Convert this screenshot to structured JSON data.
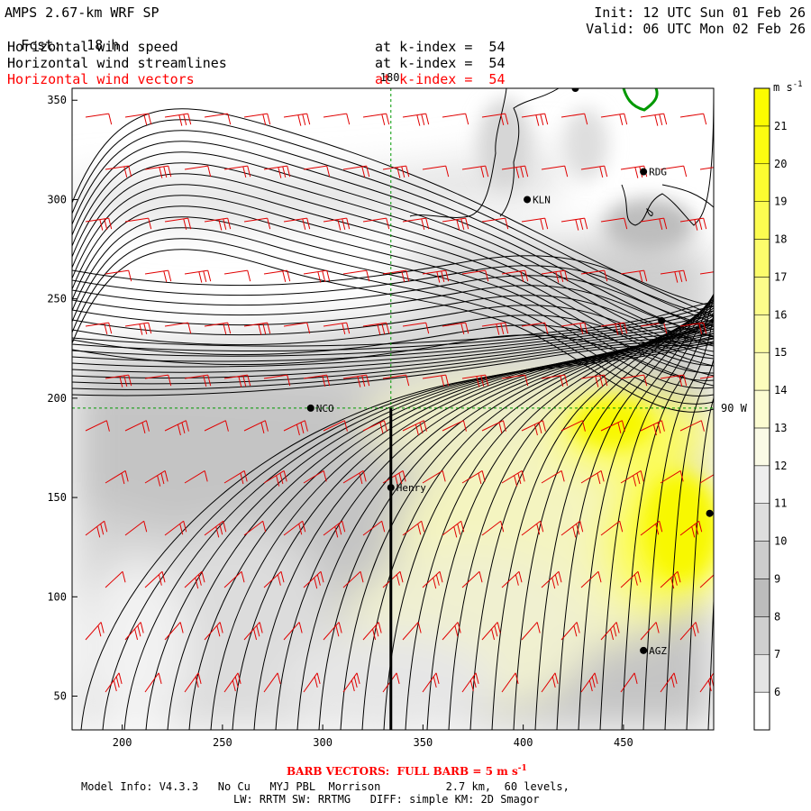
{
  "header": {
    "model": "AMPS 2.67-km WRF SP",
    "fcst_label": "Fcst:",
    "fcst_value": "18 h",
    "init": "Init: 12 UTC Sun 01 Feb 26",
    "valid": "Valid: 06 UTC Mon 02 Feb 26",
    "fields": [
      {
        "name": "Horizontal wind speed",
        "level": "at k-index =  54",
        "color": "#000000"
      },
      {
        "name": "Horizontal wind streamlines",
        "level": "at k-index =  54",
        "color": "#000000"
      },
      {
        "name": "Horizontal wind vectors",
        "level": "at k-index =  54",
        "color": "#ff0000"
      }
    ]
  },
  "footer": {
    "barb_note": "BARB VECTORS:  FULL BARB = 5 m s",
    "barb_exp": "-1",
    "model_info_1": "Model Info: V4.3.3   No Cu   MYJ PBL  Morrison          2.7 km,  60 levels,",
    "model_info_2": "LW: RRTM SW: RRTMG   DIFF: simple KM: 2D Smagor"
  },
  "chart_data": {
    "type": "heatmap",
    "xlim": [
      175,
      495
    ],
    "ylim": [
      33,
      356
    ],
    "xticks": [
      200,
      250,
      300,
      350,
      400,
      450
    ],
    "yticks": [
      50,
      100,
      150,
      200,
      250,
      300,
      350
    ],
    "grid_lines": {
      "lon180_x": 334,
      "lat90W_y": 195
    },
    "grid_labels": {
      "lon": "180",
      "lat": "90 W"
    },
    "colorbar": {
      "unit": "m s",
      "unit_exp": "-1",
      "levels": [
        6,
        7,
        8,
        9,
        10,
        11,
        12,
        13,
        14,
        15,
        16,
        17,
        18,
        19,
        20,
        21
      ],
      "colors": [
        "#ffffff",
        "#e4e4e4",
        "#cfcfcf",
        "#bcbcbc",
        "#cdcdcd",
        "#dedede",
        "#eeeeee",
        "#fafae6",
        "#fcfcd2",
        "#fcfcbc",
        "#fcfca4",
        "#fcfc8a",
        "#fcfc6c",
        "#fcfc50",
        "#fcfc30",
        "#fcfc10",
        "#fcfc00"
      ]
    },
    "stations": [
      {
        "name": "NCO",
        "x": 294,
        "y": 195
      },
      {
        "name": "Henry",
        "x": 334,
        "y": 155
      },
      {
        "name": "KLN",
        "x": 402,
        "y": 300
      },
      {
        "name": "RDG",
        "x": 460,
        "y": 314
      },
      {
        "name": "",
        "x": 469,
        "y": 239
      },
      {
        "name": "AGZ",
        "x": 460,
        "y": 73
      },
      {
        "name": "",
        "x": 493,
        "y": 142
      },
      {
        "name": "",
        "x": 426,
        "y": 356
      }
    ],
    "cross_section": {
      "x": 334,
      "y_from": 33,
      "y_to": 195
    }
  }
}
